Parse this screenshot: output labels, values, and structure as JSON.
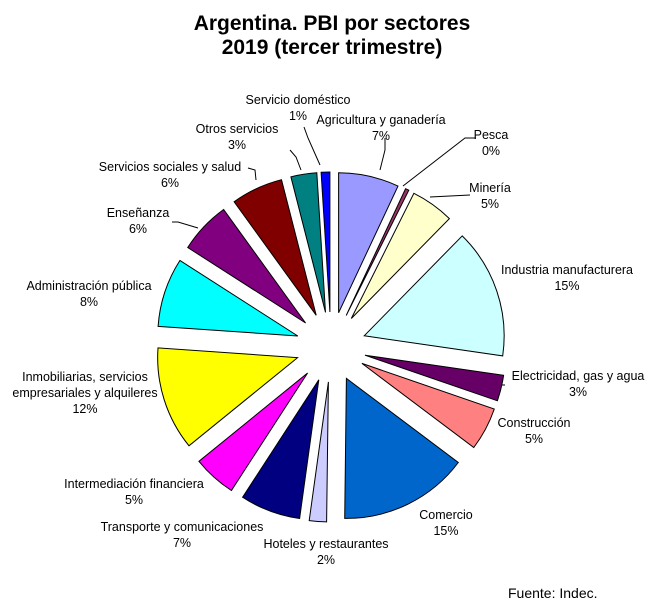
{
  "chart_data": {
    "type": "pie",
    "title": "Argentina. PBI por sectores",
    "subtitle": "2019 (tercer trimestre)",
    "exploded": true,
    "start_angle_deg": 0,
    "direction": "clockwise",
    "categories": [
      "Agricultura y ganadería",
      "Pesca",
      "Minería",
      "Industria manufacturera",
      "Electricidad, gas y agua",
      "Construcción",
      "Comercio",
      "Hoteles y restaurantes",
      "Transporte y comunicaciones",
      "Intermediación financiera",
      "Inmobiliarias, servicios empresariales y alquileres",
      "Administración pública",
      "Enseñanza",
      "Servicios sociales y salud",
      "Otros servicios",
      "Servicio doméstico"
    ],
    "values": [
      7,
      0.4,
      5,
      15,
      3,
      5,
      15,
      2,
      7,
      5,
      12,
      8,
      6,
      6,
      3,
      1
    ],
    "value_labels": [
      "7%",
      "0%",
      "5%",
      "15%",
      "3%",
      "5%",
      "15%",
      "2%",
      "7%",
      "5%",
      "12%",
      "8%",
      "6%",
      "6%",
      "3%",
      "1%"
    ],
    "colors": [
      "#9999FF",
      "#993366",
      "#FFFFCC",
      "#CCFFFF",
      "#660066",
      "#FF8080",
      "#0066CC",
      "#CCCCFF",
      "#000080",
      "#FF00FF",
      "#FFFF00",
      "#00FFFF",
      "#800080",
      "#800000",
      "#008080",
      "#0000FF"
    ],
    "unit": "%",
    "source": "Fuente: Indec."
  },
  "labels": [
    {
      "name": "Agricultura y ganadería",
      "pct": "7%"
    },
    {
      "name": "Pesca",
      "pct": "0%"
    },
    {
      "name": "Minería",
      "pct": "5%"
    },
    {
      "name": "Industria manufacturera",
      "pct": "15%"
    },
    {
      "name": "Electricidad, gas y agua",
      "pct": "3%"
    },
    {
      "name": "Construcción",
      "pct": "5%"
    },
    {
      "name": "Comercio",
      "pct": "15%"
    },
    {
      "name": "Hoteles y restaurantes",
      "pct": "2%"
    },
    {
      "name": "Transporte y comunicaciones",
      "pct": "7%"
    },
    {
      "name": "Intermediación financiera",
      "pct": "5%"
    },
    {
      "name": "Inmobiliarias, servicios",
      "name2": "empresariales y alquileres",
      "pct": "12%"
    },
    {
      "name": "Administración pública",
      "pct": "8%"
    },
    {
      "name": "Enseñanza",
      "pct": "6%"
    },
    {
      "name": "Servicios sociales y salud",
      "pct": "6%"
    },
    {
      "name": "Otros servicios",
      "pct": "3%"
    },
    {
      "name": "Servicio doméstico",
      "pct": "1%"
    }
  ],
  "header": {
    "title_line1": "Argentina. PBI por sectores",
    "title_line2": "2019 (tercer trimestre)"
  },
  "footer": {
    "source": "Fuente: Indec."
  }
}
